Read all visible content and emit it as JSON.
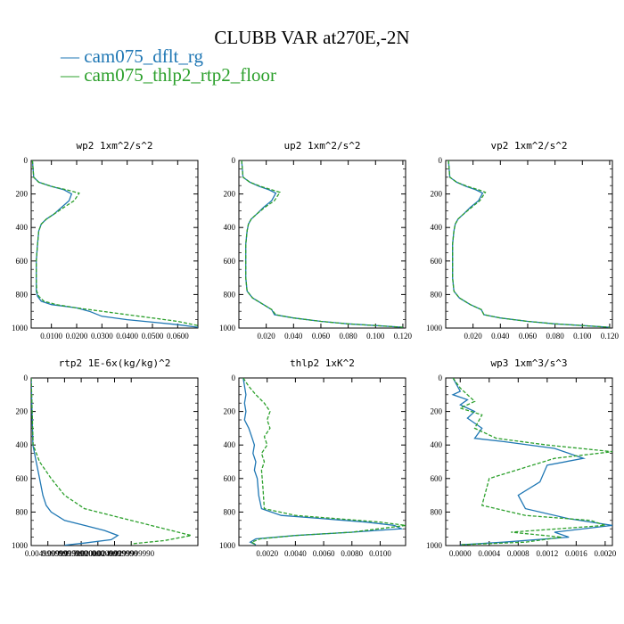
{
  "title": "CLUBB VAR at270E,-2N",
  "legend": [
    {
      "label": "cam075_dflt_rg",
      "color": "#1f77b4",
      "glyph": "—"
    },
    {
      "label": "cam075_thlp2_rtp2_floor",
      "color": "#2ca02c",
      "glyph": "—"
    }
  ],
  "chart_data": [
    {
      "type": "line",
      "title": "wp2  1xm^2/s^2",
      "xlim": [
        0.002,
        0.068
      ],
      "ylim": [
        1000,
        0
      ],
      "yticks": [
        0,
        200,
        400,
        600,
        800,
        1000
      ],
      "xticks": [
        {
          "v": 0.01,
          "label": "0.0100"
        },
        {
          "v": 0.02,
          "label": "0.0200"
        },
        {
          "v": 0.03,
          "label": "0.0300"
        },
        {
          "v": 0.04,
          "label": "0.0400"
        },
        {
          "v": 0.05,
          "label": "0.0500"
        },
        {
          "v": 0.06,
          "label": "0.0600"
        }
      ],
      "series": [
        {
          "color": "#1f77b4",
          "x": [
            0.0025,
            0.003,
            0.005,
            0.01,
            0.015,
            0.018,
            0.017,
            0.014,
            0.011,
            0.008,
            0.006,
            0.005,
            0.0045,
            0.004,
            0.004,
            0.004,
            0.0045,
            0.006,
            0.01,
            0.02,
            0.025,
            0.03,
            0.04,
            0.05,
            0.06,
            0.068
          ],
          "y": [
            0,
            100,
            130,
            155,
            175,
            200,
            240,
            280,
            320,
            350,
            380,
            420,
            500,
            600,
            700,
            780,
            810,
            840,
            860,
            880,
            900,
            930,
            950,
            965,
            980,
            995
          ]
        },
        {
          "color": "#2ca02c",
          "dashed": true,
          "x": [
            0.0025,
            0.003,
            0.005,
            0.01,
            0.016,
            0.021,
            0.019,
            0.015,
            0.011,
            0.008,
            0.006,
            0.005,
            0.0045,
            0.004,
            0.004,
            0.0042,
            0.005,
            0.007,
            0.012,
            0.02,
            0.03,
            0.04,
            0.05,
            0.06,
            0.068
          ],
          "y": [
            0,
            100,
            130,
            155,
            175,
            195,
            240,
            280,
            320,
            350,
            380,
            420,
            500,
            600,
            700,
            780,
            810,
            840,
            860,
            880,
            900,
            920,
            940,
            960,
            985
          ]
        }
      ]
    },
    {
      "type": "line",
      "title": "up2  1xm^2/s^2",
      "xlim": [
        0.0,
        0.122
      ],
      "ylim": [
        1000,
        0
      ],
      "yticks": [
        0,
        200,
        400,
        600,
        800,
        1000
      ],
      "xticks": [
        {
          "v": 0.02,
          "label": "0.020"
        },
        {
          "v": 0.04,
          "label": "0.040"
        },
        {
          "v": 0.06,
          "label": "0.060"
        },
        {
          "v": 0.08,
          "label": "0.080"
        },
        {
          "v": 0.1,
          "label": "0.100"
        },
        {
          "v": 0.12,
          "label": "0.120"
        }
      ],
      "series": [
        {
          "color": "#1f77b4",
          "x": [
            0.002,
            0.003,
            0.008,
            0.015,
            0.022,
            0.027,
            0.024,
            0.018,
            0.013,
            0.009,
            0.007,
            0.006,
            0.005,
            0.005,
            0.005,
            0.006,
            0.01,
            0.018,
            0.024,
            0.026,
            0.04,
            0.06,
            0.08,
            0.1,
            0.12
          ],
          "y": [
            0,
            100,
            130,
            155,
            175,
            195,
            240,
            280,
            320,
            350,
            380,
            420,
            500,
            600,
            700,
            780,
            820,
            860,
            890,
            920,
            940,
            960,
            975,
            985,
            995
          ]
        },
        {
          "color": "#2ca02c",
          "dashed": true,
          "x": [
            0.002,
            0.003,
            0.008,
            0.016,
            0.024,
            0.03,
            0.026,
            0.019,
            0.013,
            0.009,
            0.007,
            0.006,
            0.005,
            0.005,
            0.005,
            0.006,
            0.01,
            0.018,
            0.024,
            0.027,
            0.04,
            0.06,
            0.08,
            0.1,
            0.12
          ],
          "y": [
            0,
            100,
            130,
            155,
            175,
            190,
            240,
            280,
            320,
            350,
            380,
            420,
            500,
            600,
            700,
            780,
            820,
            860,
            890,
            920,
            940,
            960,
            975,
            985,
            995
          ]
        }
      ]
    },
    {
      "type": "line",
      "title": "vp2  1xm^2/s^2",
      "xlim": [
        0.0,
        0.122
      ],
      "ylim": [
        1000,
        0
      ],
      "yticks": [
        0,
        200,
        400,
        600,
        800,
        1000
      ],
      "xticks": [
        {
          "v": 0.02,
          "label": "0.020"
        },
        {
          "v": 0.04,
          "label": "0.040"
        },
        {
          "v": 0.06,
          "label": "0.060"
        },
        {
          "v": 0.08,
          "label": "0.080"
        },
        {
          "v": 0.1,
          "label": "0.100"
        },
        {
          "v": 0.12,
          "label": "0.120"
        }
      ],
      "series": [
        {
          "color": "#1f77b4",
          "x": [
            0.002,
            0.003,
            0.008,
            0.015,
            0.022,
            0.027,
            0.024,
            0.018,
            0.013,
            0.009,
            0.007,
            0.006,
            0.005,
            0.005,
            0.005,
            0.006,
            0.01,
            0.018,
            0.026,
            0.028,
            0.04,
            0.06,
            0.08,
            0.1,
            0.12
          ],
          "y": [
            0,
            100,
            130,
            155,
            175,
            195,
            240,
            280,
            320,
            350,
            380,
            420,
            500,
            600,
            700,
            780,
            820,
            860,
            890,
            920,
            940,
            960,
            975,
            985,
            995
          ]
        },
        {
          "color": "#2ca02c",
          "dashed": true,
          "x": [
            0.002,
            0.003,
            0.008,
            0.016,
            0.024,
            0.029,
            0.025,
            0.019,
            0.013,
            0.009,
            0.007,
            0.006,
            0.005,
            0.005,
            0.005,
            0.006,
            0.01,
            0.018,
            0.026,
            0.028,
            0.04,
            0.06,
            0.08,
            0.1,
            0.12
          ],
          "y": [
            0,
            100,
            130,
            155,
            175,
            190,
            240,
            280,
            320,
            350,
            380,
            420,
            500,
            600,
            700,
            780,
            820,
            860,
            890,
            920,
            940,
            960,
            975,
            985,
            995
          ]
        }
      ]
    },
    {
      "type": "line",
      "title": "rtp2  1E-6x(kg/kg)^2",
      "xlim": [
        0.0,
        0.05
      ],
      "ylim": [
        1000,
        0
      ],
      "yticks": [
        0,
        200,
        400,
        600,
        800,
        1000
      ],
      "xticks": [
        {
          "v": 0.005,
          "label": "0.0049999999"
        },
        {
          "v": 0.01,
          "label": "0.0099999999"
        },
        {
          "v": 0.015,
          "label": "0.0150000000"
        },
        {
          "v": 0.02,
          "label": "0.0200000000"
        },
        {
          "v": 0.025,
          "label": "0.0249999990"
        },
        {
          "v": 0.03,
          "label": "0.0299999990"
        }
      ],
      "series": [
        {
          "color": "#1f77b4",
          "x": [
            0.0,
            0.0005,
            0.0015,
            0.0025,
            0.0035,
            0.0045,
            0.006,
            0.01,
            0.016,
            0.022,
            0.026,
            0.024,
            0.016,
            0.01
          ],
          "y": [
            0,
            400,
            500,
            600,
            700,
            760,
            800,
            850,
            880,
            910,
            940,
            965,
            985,
            998
          ]
        },
        {
          "color": "#2ca02c",
          "dashed": true,
          "x": [
            0.0,
            0.0006,
            0.0025,
            0.006,
            0.01,
            0.016,
            0.024,
            0.032,
            0.04,
            0.048,
            0.04,
            0.03
          ],
          "y": [
            0,
            400,
            500,
            600,
            700,
            780,
            820,
            860,
            900,
            940,
            970,
            990
          ]
        }
      ]
    },
    {
      "type": "line",
      "title": "thlp2  1xK^2",
      "xlim": [
        0.0,
        0.0118
      ],
      "ylim": [
        1000,
        0
      ],
      "yticks": [
        0,
        200,
        400,
        600,
        800,
        1000
      ],
      "xticks": [
        {
          "v": 0.002,
          "label": "0.0020"
        },
        {
          "v": 0.004,
          "label": "0.0040"
        },
        {
          "v": 0.006,
          "label": "0.0060"
        },
        {
          "v": 0.008,
          "label": "0.0080"
        },
        {
          "v": 0.01,
          "label": "0.0100"
        }
      ],
      "series": [
        {
          "color": "#1f77b4",
          "x": [
            0.0003,
            0.0005,
            0.0004,
            0.0005,
            0.0004,
            0.0007,
            0.0009,
            0.0011,
            0.001,
            0.0012,
            0.0011,
            0.0013,
            0.0014,
            0.0016,
            0.003,
            0.006,
            0.009,
            0.011,
            0.0115,
            0.008,
            0.004,
            0.0012,
            0.0008,
            0.0012
          ],
          "y": [
            0,
            100,
            150,
            200,
            250,
            300,
            350,
            400,
            450,
            500,
            550,
            600,
            700,
            780,
            820,
            840,
            860,
            880,
            900,
            920,
            940,
            960,
            980,
            995
          ]
        },
        {
          "color": "#2ca02c",
          "dashed": true,
          "x": [
            0.0003,
            0.0007,
            0.0012,
            0.0018,
            0.0022,
            0.002,
            0.0022,
            0.0018,
            0.002,
            0.0016,
            0.0018,
            0.0016,
            0.0017,
            0.0018,
            0.004,
            0.007,
            0.01,
            0.0118,
            0.008,
            0.004,
            0.0015,
            0.0009,
            0.0012
          ],
          "y": [
            0,
            50,
            100,
            150,
            200,
            250,
            300,
            350,
            400,
            450,
            500,
            550,
            650,
            780,
            820,
            840,
            860,
            880,
            920,
            940,
            960,
            980,
            995
          ]
        }
      ]
    },
    {
      "type": "line",
      "title": "wp3  1xm^3/s^3",
      "xlim": [
        -0.0002,
        0.0021
      ],
      "ylim": [
        1000,
        0
      ],
      "yticks": [
        0,
        200,
        400,
        600,
        800,
        1000
      ],
      "xticks": [
        {
          "v": 0.0,
          "label": "0.0000"
        },
        {
          "v": 0.0004,
          "label": "0.0004"
        },
        {
          "v": 0.0008,
          "label": "0.0008"
        },
        {
          "v": 0.0012,
          "label": "0.0012"
        },
        {
          "v": 0.0016,
          "label": "0.0016"
        },
        {
          "v": 0.002,
          "label": "0.0020"
        }
      ],
      "series": [
        {
          "color": "#1f77b4",
          "x": [
            -0.0001,
            0.0,
            -0.0001,
            0.0001,
            0.0,
            0.0002,
            0.0001,
            0.0003,
            0.0002,
            0.0006,
            0.0013,
            0.0017,
            0.0012,
            0.0011,
            0.0008,
            0.0009,
            0.0015,
            0.0021,
            0.0013,
            0.0015,
            0.0006,
            0.0
          ],
          "y": [
            0,
            80,
            100,
            130,
            160,
            200,
            240,
            300,
            360,
            380,
            420,
            480,
            520,
            620,
            700,
            780,
            840,
            880,
            920,
            950,
            980,
            995
          ]
        },
        {
          "color": "#2ca02c",
          "dashed": true,
          "x": [
            -0.0001,
            0.0,
            0.0001,
            0.0002,
            0.0,
            0.0003,
            0.0002,
            0.0005,
            0.0012,
            0.0021,
            0.0013,
            0.0004,
            0.0003,
            0.0009,
            0.0018,
            0.002,
            0.0007,
            0.0014,
            0.0009,
            0.0
          ],
          "y": [
            0,
            60,
            100,
            140,
            180,
            220,
            300,
            360,
            400,
            440,
            480,
            600,
            760,
            820,
            850,
            880,
            920,
            950,
            980,
            995
          ]
        }
      ]
    }
  ]
}
